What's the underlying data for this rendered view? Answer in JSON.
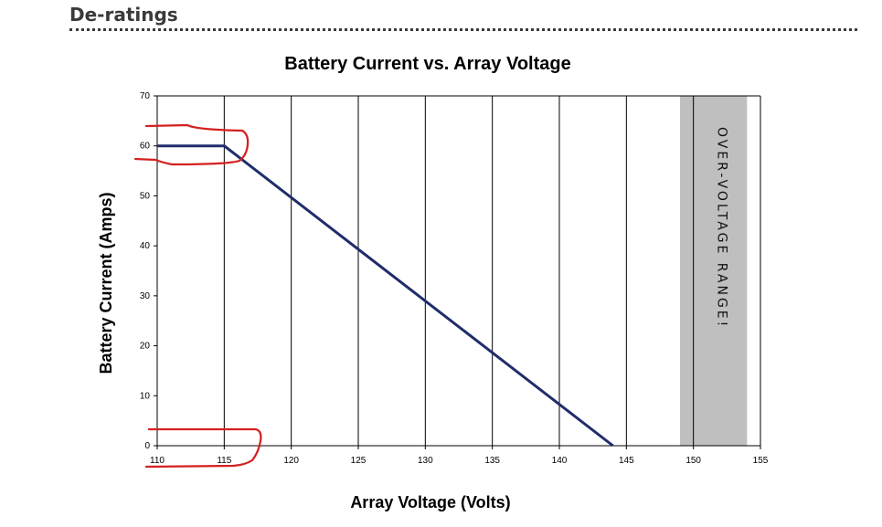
{
  "page": {
    "heading": "De-ratings"
  },
  "chart_data": {
    "type": "line",
    "title": "Battery Current vs. Array Voltage",
    "xlabel": "Array Voltage (Volts)",
    "ylabel": "Battery Current (Amps)",
    "xlim": [
      110,
      155
    ],
    "ylim": [
      0,
      70
    ],
    "x_ticks": [
      110,
      115,
      120,
      125,
      130,
      135,
      140,
      145,
      150,
      155
    ],
    "y_ticks": [
      0,
      10,
      20,
      30,
      40,
      50,
      60,
      70
    ],
    "grid": "vertical",
    "series": [
      {
        "color": "#1f2d6b",
        "points": [
          [
            110,
            60
          ],
          [
            115,
            60
          ],
          [
            144,
            0
          ]
        ]
      }
    ],
    "shaded_band": {
      "x_range": [
        149,
        154
      ],
      "color": "#bfbfbf",
      "label": "OVER-VOLTAGE RANGE!"
    },
    "annotation_color": "#d42020"
  }
}
